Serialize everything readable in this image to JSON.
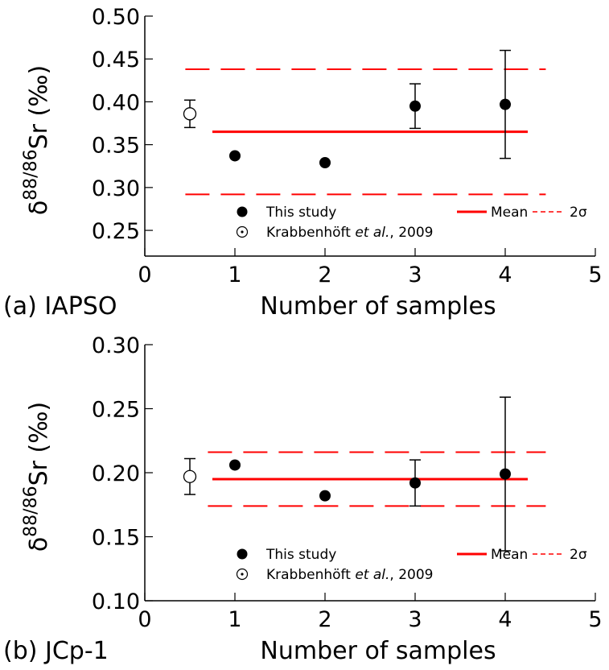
{
  "chart_data": [
    {
      "type": "scatter",
      "panel_label": "(a) IAPSO",
      "xlabel": "Number of samples",
      "ylabel_delta": "δ",
      "ylabel_superscript": "88/86",
      "ylabel_main": "Sr (‰)",
      "xlim": [
        0,
        5
      ],
      "ylim": [
        0.22,
        0.5
      ],
      "xticks": [
        "0",
        "1",
        "2",
        "3",
        "4",
        "5"
      ],
      "yticks": [
        "0.25",
        "0.30",
        "0.35",
        "0.40",
        "0.45",
        "0.50"
      ],
      "series": [
        {
          "name": "This study",
          "marker": "filled-circle",
          "points": [
            {
              "x": 1,
              "y": 0.337,
              "err": null
            },
            {
              "x": 2,
              "y": 0.329,
              "err": null
            },
            {
              "x": 3,
              "y": 0.395,
              "err": 0.026
            },
            {
              "x": 4,
              "y": 0.397,
              "err": 0.063
            }
          ]
        },
        {
          "name": "Krabbenhöft et al., 2009",
          "marker": "open-circle",
          "points": [
            {
              "x": 0.5,
              "y": 0.386,
              "err": 0.016
            }
          ]
        }
      ],
      "mean": {
        "label": "Mean",
        "value": 0.365,
        "x_range": [
          0.75,
          4.25
        ],
        "color": "#ff0000"
      },
      "two_sigma": {
        "label": "2σ",
        "values": [
          0.438,
          0.292
        ],
        "x_range": [
          0.45,
          4.45
        ],
        "color": "#ff0000"
      },
      "legend": {
        "position": "bottom",
        "this_study": "This study",
        "mean": "Mean",
        "two_sigma": "2σ",
        "krabbenhoft_prefix": "Krabbenhöft ",
        "krabbenhoft_italic": "et al.",
        "krabbenhoft_suffix": ", 2009"
      }
    },
    {
      "type": "scatter",
      "panel_label": "(b) JCp-1",
      "xlabel": "Number of samples",
      "ylabel_delta": "δ",
      "ylabel_superscript": "88/86",
      "ylabel_main": "Sr (‰)",
      "xlim": [
        0,
        5
      ],
      "ylim": [
        0.1,
        0.3
      ],
      "xticks": [
        "0",
        "1",
        "2",
        "3",
        "4",
        "5"
      ],
      "yticks": [
        "0.10",
        "0.15",
        "0.20",
        "0.25",
        "0.30"
      ],
      "series": [
        {
          "name": "This study",
          "marker": "filled-circle",
          "points": [
            {
              "x": 1,
              "y": 0.206,
              "err": null
            },
            {
              "x": 2,
              "y": 0.182,
              "err": null
            },
            {
              "x": 3,
              "y": 0.192,
              "err": 0.018
            },
            {
              "x": 4,
              "y": 0.199,
              "err": 0.06
            }
          ]
        },
        {
          "name": "Krabbenhöft et al., 2009",
          "marker": "open-circle",
          "points": [
            {
              "x": 0.5,
              "y": 0.197,
              "err": 0.014
            }
          ]
        }
      ],
      "mean": {
        "label": "Mean",
        "value": 0.195,
        "x_range": [
          0.75,
          4.25
        ],
        "color": "#ff0000"
      },
      "two_sigma": {
        "label": "2σ",
        "values": [
          0.216,
          0.174
        ],
        "x_range": [
          0.7,
          4.45
        ],
        "color": "#ff0000"
      },
      "legend": {
        "position": "bottom",
        "this_study": "This study",
        "mean": "Mean",
        "two_sigma": "2σ",
        "krabbenhoft_prefix": "Krabbenhöft ",
        "krabbenhoft_italic": "et al.",
        "krabbenhoft_suffix": ", 2009"
      }
    }
  ]
}
